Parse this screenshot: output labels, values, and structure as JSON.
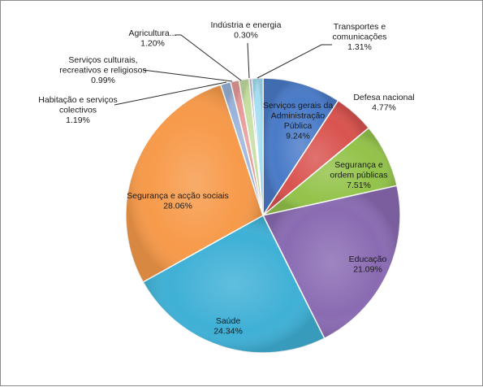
{
  "chart_data": {
    "type": "pie",
    "title": "",
    "start_angle_deg": 0,
    "direction": "clockwise",
    "slices": [
      {
        "label": "Serviços gerais da Administração Pública",
        "lines": [
          "Serviços gerais da",
          "Administração",
          "Pública"
        ],
        "value": 9.24,
        "display": "9.24%",
        "color": "#4a7bc8"
      },
      {
        "label": "Defesa nacional",
        "lines": [
          "Defesa nacional"
        ],
        "value": 4.77,
        "display": "4.77%",
        "color": "#d9534f"
      },
      {
        "label": "Segurança e ordem públicas",
        "lines": [
          "Segurança e",
          "ordem públicas"
        ],
        "value": 7.51,
        "display": "7.51%",
        "color": "#93c34a"
      },
      {
        "label": "Educação",
        "lines": [
          "Educação"
        ],
        "value": 21.09,
        "display": "21.09%",
        "color": "#8a6bb3"
      },
      {
        "label": "Saúde",
        "lines": [
          "Saúde"
        ],
        "value": 24.34,
        "display": "24.34%",
        "color": "#3fb0d6"
      },
      {
        "label": "Segurança e acção sociais",
        "lines": [
          "Segurança e acção sociais"
        ],
        "value": 28.06,
        "display": "28.06%",
        "color": "#f79a4a"
      },
      {
        "label": "Habitação e serviços colectivos",
        "lines": [
          "Habitação e serviços",
          "colectivos"
        ],
        "value": 1.19,
        "display": "1.19%",
        "color": "#9ab3d9"
      },
      {
        "label": "Serviços culturais, recreativos e religiosos",
        "lines": [
          "Serviços culturais,",
          "recreativos e religiosos"
        ],
        "value": 0.99,
        "display": "0.99%",
        "color": "#e79a98"
      },
      {
        "label": "Agricultura...",
        "lines": [
          "Agricultura..."
        ],
        "value": 1.2,
        "display": "1.20%",
        "color": "#c5dea0"
      },
      {
        "label": "Indústria e energia",
        "lines": [
          "Indústria e energia"
        ],
        "value": 0.3,
        "display": "0.30%",
        "color": "#b8a9d4"
      },
      {
        "label": "Transportes e comunicações",
        "lines": [
          "Transportes e",
          "comunicações"
        ],
        "value": 1.31,
        "display": "1.31%",
        "color": "#a5dff2"
      }
    ]
  }
}
